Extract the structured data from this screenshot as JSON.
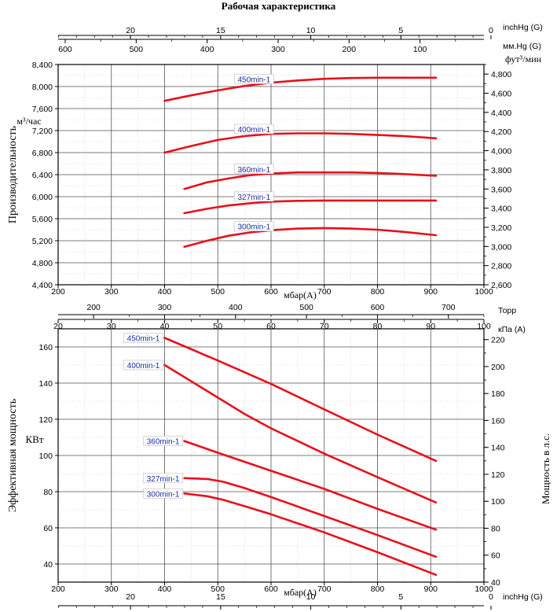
{
  "title": "Рабочая характеристика",
  "chart_data": [
    {
      "type": "line",
      "name_ref": "capacity",
      "ylabel": "Производительность",
      "yunit_left": "м³/час",
      "yunit_right": "фут³/мин",
      "xlabel": "мбар(A)",
      "xlim": [
        200,
        1000
      ],
      "ylim": [
        4400,
        8400
      ],
      "ylim_right": [
        2600,
        4900
      ],
      "x_ticks": [
        200,
        300,
        400,
        500,
        600,
        700,
        800,
        900,
        1000
      ],
      "y_ticks": [
        "4,400",
        "4,800",
        "5,200",
        "5,600",
        "6,000",
        "6,400",
        "6,800",
        "7,200",
        "7,600",
        "8,000",
        "8,400"
      ],
      "y_tick_values": [
        4400,
        4800,
        5200,
        5600,
        6000,
        6400,
        6800,
        7200,
        7600,
        8000,
        8400
      ],
      "y_right_ticks": [
        "2,600",
        "2,800",
        "3,000",
        "3,200",
        "3,400",
        "3,600",
        "3,800",
        "4,000",
        "4,200",
        "4,400",
        "4,600",
        "4,800"
      ],
      "y_right_values": [
        2600,
        2800,
        3000,
        3200,
        3400,
        3600,
        3800,
        4000,
        4200,
        4400,
        4600,
        4800
      ],
      "top_axes": [
        {
          "unit": "inchHg (G)",
          "ticks": [
            "20",
            "15",
            "10",
            "5",
            "0"
          ],
          "values": [
            20,
            15,
            10,
            5,
            0
          ]
        },
        {
          "unit": "мм.Hg (G)",
          "ticks": [
            "600",
            "500",
            "400",
            "300",
            "200",
            "100"
          ],
          "values": [
            600,
            500,
            400,
            300,
            200,
            100
          ]
        }
      ],
      "series": [
        {
          "name": "450min-1",
          "label_x": 540,
          "x": [
            400,
            450,
            500,
            550,
            600,
            650,
            700,
            750,
            800,
            850,
            910
          ],
          "y": [
            7740,
            7840,
            7930,
            8010,
            8070,
            8110,
            8140,
            8155,
            8160,
            8160,
            8160
          ]
        },
        {
          "name": "400min-1",
          "label_x": 540,
          "x": [
            400,
            450,
            500,
            550,
            600,
            650,
            700,
            750,
            800,
            850,
            910
          ],
          "y": [
            6800,
            6920,
            7030,
            7100,
            7140,
            7150,
            7150,
            7140,
            7120,
            7100,
            7060
          ]
        },
        {
          "name": "360min-1",
          "label_x": 540,
          "x": [
            437,
            480,
            520,
            560,
            600,
            650,
            700,
            750,
            800,
            850,
            910
          ],
          "y": [
            6140,
            6260,
            6330,
            6390,
            6420,
            6440,
            6440,
            6440,
            6430,
            6410,
            6380
          ]
        },
        {
          "name": "327min-1",
          "label_x": 540,
          "x": [
            437,
            480,
            520,
            560,
            600,
            650,
            700,
            750,
            800,
            850,
            910
          ],
          "y": [
            5700,
            5780,
            5840,
            5880,
            5910,
            5925,
            5930,
            5930,
            5930,
            5930,
            5930
          ]
        },
        {
          "name": "300min-1",
          "label_x": 540,
          "x": [
            437,
            480,
            520,
            560,
            600,
            650,
            700,
            750,
            800,
            850,
            910
          ],
          "y": [
            5090,
            5200,
            5290,
            5350,
            5390,
            5420,
            5430,
            5420,
            5400,
            5360,
            5300
          ]
        }
      ]
    },
    {
      "type": "line",
      "name_ref": "power",
      "ylabel": "Эффективная мощность",
      "yunit_left": "КВт",
      "ylabel_right": "Мощность в л.с.",
      "xlabel": "мбар(A)",
      "xlim": [
        200,
        1000
      ],
      "ylim": [
        30,
        170
      ],
      "ylim_right": [
        40,
        228
      ],
      "x_ticks": [
        200,
        300,
        400,
        500,
        600,
        700,
        800,
        900,
        1000
      ],
      "y_ticks": [
        "40",
        "60",
        "80",
        "100",
        "120",
        "140",
        "160"
      ],
      "y_tick_values": [
        40,
        60,
        80,
        100,
        120,
        140,
        160
      ],
      "y_right_ticks": [
        "40",
        "60",
        "80",
        "100",
        "120",
        "140",
        "160",
        "180",
        "200",
        "220"
      ],
      "y_right_values": [
        40,
        60,
        80,
        100,
        120,
        140,
        160,
        180,
        200,
        220
      ],
      "top_axes": [
        {
          "unit": "Торр",
          "ticks": [
            "200",
            "300",
            "400",
            "500",
            "600",
            "700"
          ],
          "values": [
            200,
            300,
            400,
            500,
            600,
            700
          ]
        },
        {
          "unit": "кПа (A)",
          "ticks": [
            "20",
            "30",
            "40",
            "50",
            "60",
            "70",
            "80",
            "90",
            "100"
          ],
          "values": [
            20,
            30,
            40,
            50,
            60,
            70,
            80,
            90,
            100
          ]
        }
      ],
      "bottom_axis": {
        "unit": "inchHg (G)",
        "ticks": [
          "20",
          "15",
          "10",
          "5",
          "0"
        ],
        "values": [
          20,
          15,
          10,
          5,
          0
        ]
      },
      "series": [
        {
          "name": "450min-1",
          "label_x": 400,
          "x": [
            400,
            500,
            600,
            700,
            800,
            910
          ],
          "y": [
            165,
            152.5,
            139.5,
            125.5,
            111.5,
            97
          ]
        },
        {
          "name": "400min-1",
          "label_x": 400,
          "x": [
            400,
            500,
            550,
            600,
            650,
            700,
            800,
            910
          ],
          "y": [
            150,
            132,
            123,
            115,
            108,
            101,
            88,
            74
          ]
        },
        {
          "name": "360min-1",
          "label_x": 437,
          "x": [
            437,
            500,
            600,
            700,
            800,
            910
          ],
          "y": [
            108,
            101.5,
            91.5,
            81.5,
            70.5,
            59
          ]
        },
        {
          "name": "327min-1",
          "label_x": 437,
          "x": [
            437,
            480,
            510,
            550,
            600,
            700,
            800,
            910
          ],
          "y": [
            87.5,
            87,
            85.5,
            82,
            77,
            66.5,
            56,
            44
          ]
        },
        {
          "name": "300min-1",
          "label_x": 437,
          "x": [
            437,
            480,
            510,
            550,
            600,
            700,
            800,
            910
          ],
          "y": [
            79,
            77.5,
            75.5,
            72,
            67.5,
            57.5,
            46.5,
            34
          ]
        }
      ]
    }
  ]
}
